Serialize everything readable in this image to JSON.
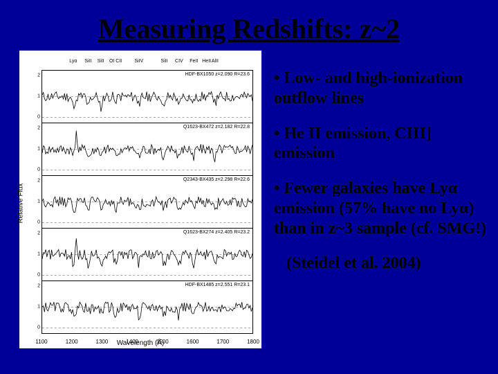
{
  "title": "Measuring Redshifts: z~2",
  "bullets": [
    "• Low- and high-ionization outflow lines",
    "• He II emission, CIII] emission",
    "• Fewer galaxies have Lyα emission (57% have no Lyα) than in z~3 sample (cf. SMG!)"
  ],
  "citation": "(Steidel et al. 2004)",
  "figure": {
    "ylabel": "Relative Flux",
    "xlabel": "Wavelength (Å)",
    "top_markers": [
      {
        "label": "Lyα",
        "pos_pct": 15
      },
      {
        "label": "SiII",
        "pos_pct": 22
      },
      {
        "label": "SiII",
        "pos_pct": 28
      },
      {
        "label": "OI CII",
        "pos_pct": 35
      },
      {
        "label": "SiIV",
        "pos_pct": 46
      },
      {
        "label": "SiII",
        "pos_pct": 58
      },
      {
        "label": "CIV",
        "pos_pct": 65
      },
      {
        "label": "FeII",
        "pos_pct": 72
      },
      {
        "label": "HeII",
        "pos_pct": 78
      },
      {
        "label": "AlII",
        "pos_pct": 82
      }
    ],
    "xlim": [
      1100,
      1800
    ],
    "xticks": [
      1100,
      1200,
      1300,
      1400,
      1500,
      1600,
      1700,
      1800
    ],
    "ylim": [
      0,
      2
    ],
    "yticks": [
      0,
      1,
      2
    ],
    "panels": [
      {
        "label": "HDF-BX1050 z=2.090 R=23.6"
      },
      {
        "label": "Q1623-BX472 z=2.182 R=22.8"
      },
      {
        "label": "Q2343-BX435 z=2.298 R=22.6"
      },
      {
        "label": "Q1623-BX274 z=2.405 R=23.2"
      },
      {
        "label": "HDF-BX1485 z=2.551 R=23.1"
      }
    ],
    "line_color": "#000000",
    "dash_color": "#888888",
    "background_color": "#ffffff"
  },
  "colors": {
    "slide_bg": "#000099",
    "text": "#000000"
  }
}
